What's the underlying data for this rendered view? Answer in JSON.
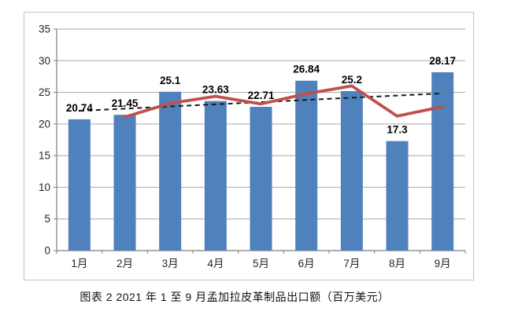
{
  "chart_data": {
    "type": "bar",
    "title": "图表 2  2021 年 1 至 9 月孟加拉皮革制品出口额（百万美元）",
    "xlabel": "",
    "ylabel": "",
    "categories": [
      "1月",
      "2月",
      "3月",
      "4月",
      "5月",
      "6月",
      "7月",
      "8月",
      "9月"
    ],
    "bars": {
      "values": [
        20.74,
        21.45,
        25.1,
        23.63,
        22.71,
        26.84,
        25.2,
        17.3,
        28.17
      ],
      "labels": [
        "20.74",
        "21.45",
        "25.1",
        "23.63",
        "22.71",
        "26.84",
        "25.2",
        "17.3",
        "28.17"
      ]
    },
    "moving_average_line": {
      "description": "unlabeled red line, 2-period moving average, starts at 2月",
      "start_category_index": 1,
      "values": [
        21.1,
        23.28,
        24.37,
        23.17,
        24.78,
        26.02,
        21.25,
        22.74
      ]
    },
    "trendline": {
      "description": "black dashed linear trendline from 1月 to 9月",
      "start_value": 22.08,
      "end_value": 24.84
    },
    "ylim": [
      0,
      35
    ],
    "ytick_interval": 5,
    "ytick_labels": [
      "0",
      "5",
      "10",
      "15",
      "20",
      "25",
      "30",
      "35"
    ],
    "grid": true,
    "legend": "none"
  },
  "colors": {
    "bar": "#4f81bd",
    "moving_average_line": "#c0504d",
    "trendline": "#1a1a1a",
    "gridline": "#a8a8a8",
    "axis": "#7f7f7f",
    "tick_label": "#262626",
    "data_label": "#000000",
    "chart_border": "#c3c3c3"
  }
}
